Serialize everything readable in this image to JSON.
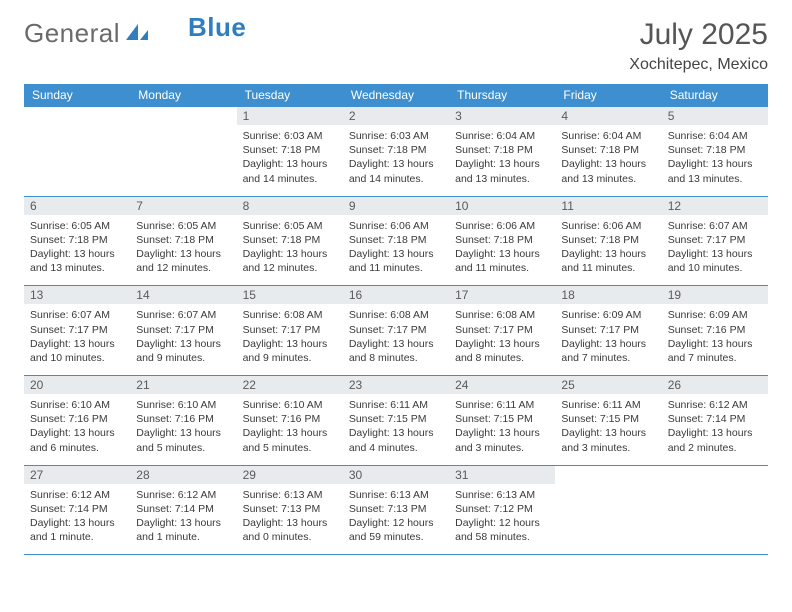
{
  "branding": {
    "logo_text_a": "General",
    "logo_text_b": "Blue"
  },
  "colors": {
    "header_bg": "#3d8fcf",
    "header_text": "#ffffff",
    "daynum_bg": "#e8ebed",
    "border": "#3d8fcf",
    "logo_gray": "#6a6a6a",
    "logo_blue": "#2f7fc0",
    "text": "#3a3a3a"
  },
  "title": {
    "month": "July 2025",
    "location": "Xochitepec, Mexico"
  },
  "weekdays": [
    "Sunday",
    "Monday",
    "Tuesday",
    "Wednesday",
    "Thursday",
    "Friday",
    "Saturday"
  ],
  "weeks": [
    [
      null,
      null,
      {
        "day": "1",
        "sunrise": "6:03 AM",
        "sunset": "7:18 PM",
        "daylight": "13 hours and 14 minutes."
      },
      {
        "day": "2",
        "sunrise": "6:03 AM",
        "sunset": "7:18 PM",
        "daylight": "13 hours and 14 minutes."
      },
      {
        "day": "3",
        "sunrise": "6:04 AM",
        "sunset": "7:18 PM",
        "daylight": "13 hours and 13 minutes."
      },
      {
        "day": "4",
        "sunrise": "6:04 AM",
        "sunset": "7:18 PM",
        "daylight": "13 hours and 13 minutes."
      },
      {
        "day": "5",
        "sunrise": "6:04 AM",
        "sunset": "7:18 PM",
        "daylight": "13 hours and 13 minutes."
      }
    ],
    [
      {
        "day": "6",
        "sunrise": "6:05 AM",
        "sunset": "7:18 PM",
        "daylight": "13 hours and 13 minutes."
      },
      {
        "day": "7",
        "sunrise": "6:05 AM",
        "sunset": "7:18 PM",
        "daylight": "13 hours and 12 minutes."
      },
      {
        "day": "8",
        "sunrise": "6:05 AM",
        "sunset": "7:18 PM",
        "daylight": "13 hours and 12 minutes."
      },
      {
        "day": "9",
        "sunrise": "6:06 AM",
        "sunset": "7:18 PM",
        "daylight": "13 hours and 11 minutes."
      },
      {
        "day": "10",
        "sunrise": "6:06 AM",
        "sunset": "7:18 PM",
        "daylight": "13 hours and 11 minutes."
      },
      {
        "day": "11",
        "sunrise": "6:06 AM",
        "sunset": "7:18 PM",
        "daylight": "13 hours and 11 minutes."
      },
      {
        "day": "12",
        "sunrise": "6:07 AM",
        "sunset": "7:17 PM",
        "daylight": "13 hours and 10 minutes."
      }
    ],
    [
      {
        "day": "13",
        "sunrise": "6:07 AM",
        "sunset": "7:17 PM",
        "daylight": "13 hours and 10 minutes."
      },
      {
        "day": "14",
        "sunrise": "6:07 AM",
        "sunset": "7:17 PM",
        "daylight": "13 hours and 9 minutes."
      },
      {
        "day": "15",
        "sunrise": "6:08 AM",
        "sunset": "7:17 PM",
        "daylight": "13 hours and 9 minutes."
      },
      {
        "day": "16",
        "sunrise": "6:08 AM",
        "sunset": "7:17 PM",
        "daylight": "13 hours and 8 minutes."
      },
      {
        "day": "17",
        "sunrise": "6:08 AM",
        "sunset": "7:17 PM",
        "daylight": "13 hours and 8 minutes."
      },
      {
        "day": "18",
        "sunrise": "6:09 AM",
        "sunset": "7:17 PM",
        "daylight": "13 hours and 7 minutes."
      },
      {
        "day": "19",
        "sunrise": "6:09 AM",
        "sunset": "7:16 PM",
        "daylight": "13 hours and 7 minutes."
      }
    ],
    [
      {
        "day": "20",
        "sunrise": "6:10 AM",
        "sunset": "7:16 PM",
        "daylight": "13 hours and 6 minutes."
      },
      {
        "day": "21",
        "sunrise": "6:10 AM",
        "sunset": "7:16 PM",
        "daylight": "13 hours and 5 minutes."
      },
      {
        "day": "22",
        "sunrise": "6:10 AM",
        "sunset": "7:16 PM",
        "daylight": "13 hours and 5 minutes."
      },
      {
        "day": "23",
        "sunrise": "6:11 AM",
        "sunset": "7:15 PM",
        "daylight": "13 hours and 4 minutes."
      },
      {
        "day": "24",
        "sunrise": "6:11 AM",
        "sunset": "7:15 PM",
        "daylight": "13 hours and 3 minutes."
      },
      {
        "day": "25",
        "sunrise": "6:11 AM",
        "sunset": "7:15 PM",
        "daylight": "13 hours and 3 minutes."
      },
      {
        "day": "26",
        "sunrise": "6:12 AM",
        "sunset": "7:14 PM",
        "daylight": "13 hours and 2 minutes."
      }
    ],
    [
      {
        "day": "27",
        "sunrise": "6:12 AM",
        "sunset": "7:14 PM",
        "daylight": "13 hours and 1 minute."
      },
      {
        "day": "28",
        "sunrise": "6:12 AM",
        "sunset": "7:14 PM",
        "daylight": "13 hours and 1 minute."
      },
      {
        "day": "29",
        "sunrise": "6:13 AM",
        "sunset": "7:13 PM",
        "daylight": "13 hours and 0 minutes."
      },
      {
        "day": "30",
        "sunrise": "6:13 AM",
        "sunset": "7:13 PM",
        "daylight": "12 hours and 59 minutes."
      },
      {
        "day": "31",
        "sunrise": "6:13 AM",
        "sunset": "7:12 PM",
        "daylight": "12 hours and 58 minutes."
      },
      null,
      null
    ]
  ],
  "labels": {
    "sunrise": "Sunrise: ",
    "sunset": "Sunset: ",
    "daylight": "Daylight: "
  }
}
